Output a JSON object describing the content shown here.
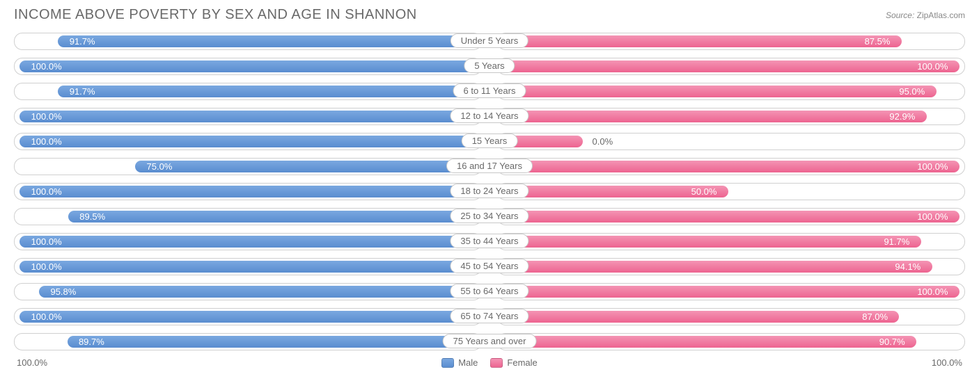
{
  "title": "INCOME ABOVE POVERTY BY SEX AND AGE IN SHANNON",
  "source_label": "Source:",
  "source_value": "ZipAtlas.com",
  "chart": {
    "type": "diverging-bar",
    "male_color": "#5a8dd0",
    "male_gradient_top": "#7aa8e0",
    "female_color": "#ed6490",
    "female_gradient_top": "#f494b4",
    "track_border": "#d0d0d0",
    "track_bg": "#ffffff",
    "label_border": "#c8c8c8",
    "text_color": "#696969",
    "inside_text_color": "#ffffff",
    "axis_min_label": "100.0%",
    "axis_max_label": "100.0%",
    "legend": {
      "male": "Male",
      "female": "Female"
    },
    "rows": [
      {
        "age": "Under 5 Years",
        "male": 91.7,
        "male_label": "91.7%",
        "female": 87.5,
        "female_label": "87.5%"
      },
      {
        "age": "5 Years",
        "male": 100.0,
        "male_label": "100.0%",
        "female": 100.0,
        "female_label": "100.0%"
      },
      {
        "age": "6 to 11 Years",
        "male": 91.7,
        "male_label": "91.7%",
        "female": 95.0,
        "female_label": "95.0%"
      },
      {
        "age": "12 to 14 Years",
        "male": 100.0,
        "male_label": "100.0%",
        "female": 92.9,
        "female_label": "92.9%"
      },
      {
        "age": "15 Years",
        "male": 100.0,
        "male_label": "100.0%",
        "female": 0.0,
        "female_label": "0.0%",
        "female_stub": 9
      },
      {
        "age": "16 and 17 Years",
        "male": 75.0,
        "male_label": "75.0%",
        "female": 100.0,
        "female_label": "100.0%"
      },
      {
        "age": "18 to 24 Years",
        "male": 100.0,
        "male_label": "100.0%",
        "female": 50.0,
        "female_label": "50.0%"
      },
      {
        "age": "25 to 34 Years",
        "male": 89.5,
        "male_label": "89.5%",
        "female": 100.0,
        "female_label": "100.0%"
      },
      {
        "age": "35 to 44 Years",
        "male": 100.0,
        "male_label": "100.0%",
        "female": 91.7,
        "female_label": "91.7%"
      },
      {
        "age": "45 to 54 Years",
        "male": 100.0,
        "male_label": "100.0%",
        "female": 94.1,
        "female_label": "94.1%"
      },
      {
        "age": "55 to 64 Years",
        "male": 95.8,
        "male_label": "95.8%",
        "female": 100.0,
        "female_label": "100.0%"
      },
      {
        "age": "65 to 74 Years",
        "male": 100.0,
        "male_label": "100.0%",
        "female": 87.0,
        "female_label": "87.0%"
      },
      {
        "age": "75 Years and over",
        "male": 89.7,
        "male_label": "89.7%",
        "female": 90.7,
        "female_label": "90.7%"
      }
    ]
  }
}
